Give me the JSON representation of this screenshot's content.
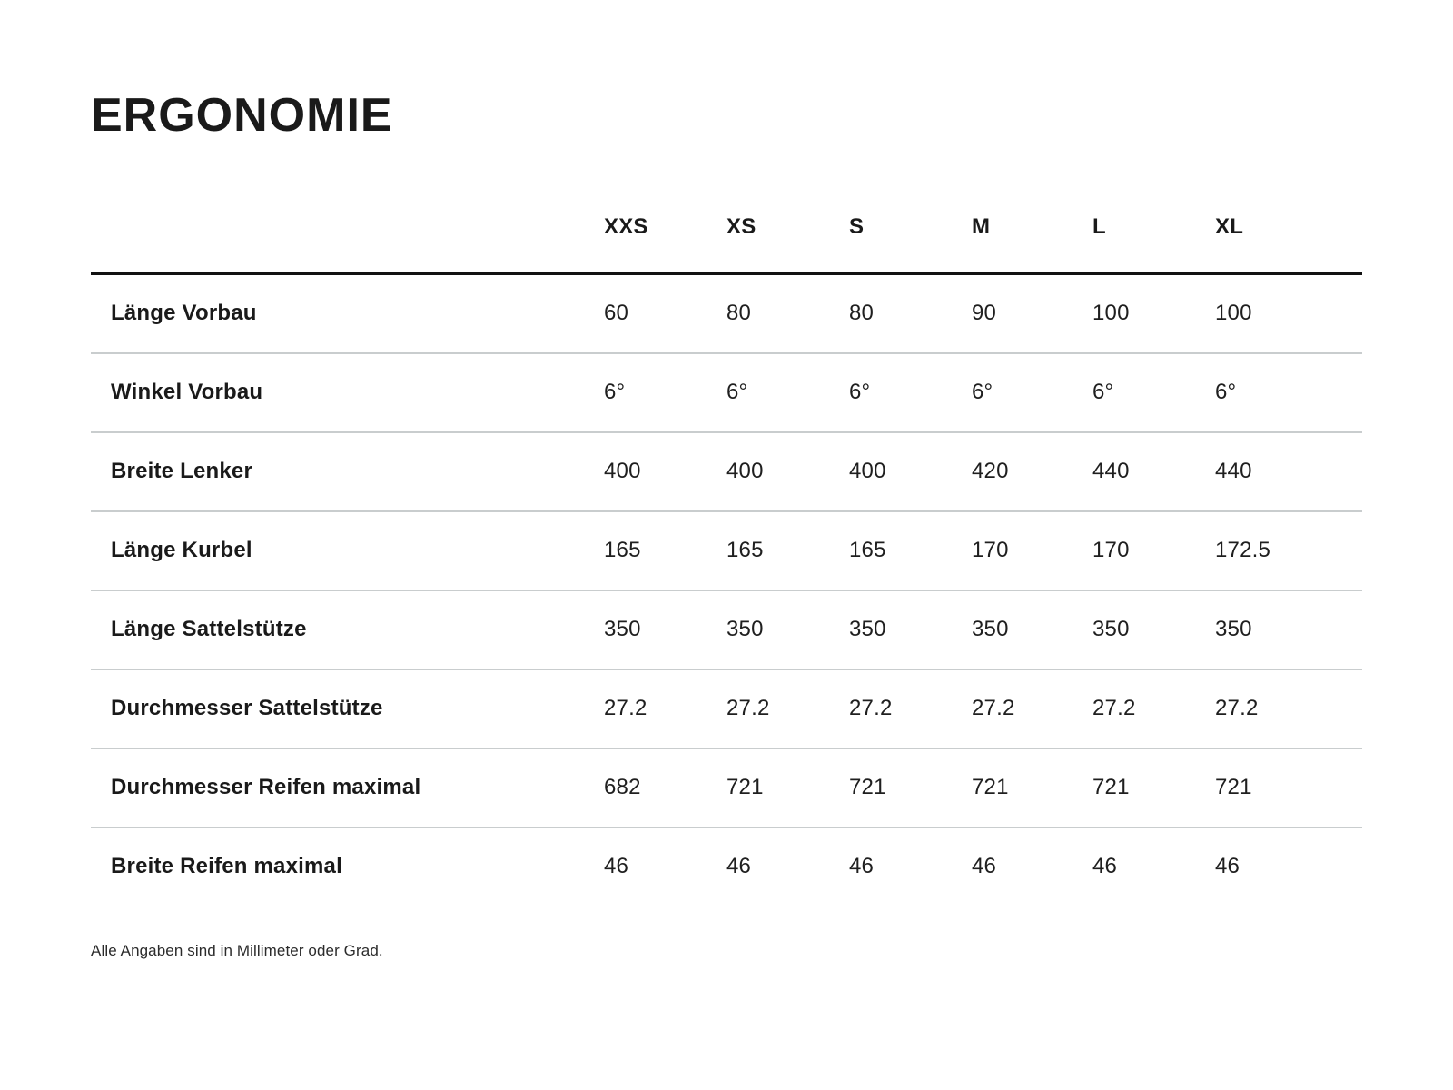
{
  "title": "ERGONOMIE",
  "table": {
    "columns": [
      "XXS",
      "XS",
      "S",
      "M",
      "L",
      "XL"
    ],
    "rows": [
      {
        "label": "Länge Vorbau",
        "values": [
          "60",
          "80",
          "80",
          "90",
          "100",
          "100"
        ]
      },
      {
        "label": "Winkel Vorbau",
        "values": [
          "6°",
          "6°",
          "6°",
          "6°",
          "6°",
          "6°"
        ]
      },
      {
        "label": "Breite Lenker",
        "values": [
          "400",
          "400",
          "400",
          "420",
          "440",
          "440"
        ]
      },
      {
        "label": "Länge Kurbel",
        "values": [
          "165",
          "165",
          "165",
          "170",
          "170",
          "172.5"
        ]
      },
      {
        "label": "Länge Sattelstütze",
        "values": [
          "350",
          "350",
          "350",
          "350",
          "350",
          "350"
        ]
      },
      {
        "label": "Durchmesser Sattelstütze",
        "values": [
          "27.2",
          "27.2",
          "27.2",
          "27.2",
          "27.2",
          "27.2"
        ]
      },
      {
        "label": "Durchmesser Reifen maximal",
        "values": [
          "682",
          "721",
          "721",
          "721",
          "721",
          "721"
        ]
      },
      {
        "label": "Breite Reifen maximal",
        "values": [
          "46",
          "46",
          "46",
          "46",
          "46",
          "46"
        ]
      }
    ]
  },
  "footnote": "Alle Angaben sind in Millimeter oder Grad.",
  "colors": {
    "background": "#ffffff",
    "text": "#1a1a1a",
    "header_rule": "#111111",
    "row_separator": "#c9cdce"
  }
}
